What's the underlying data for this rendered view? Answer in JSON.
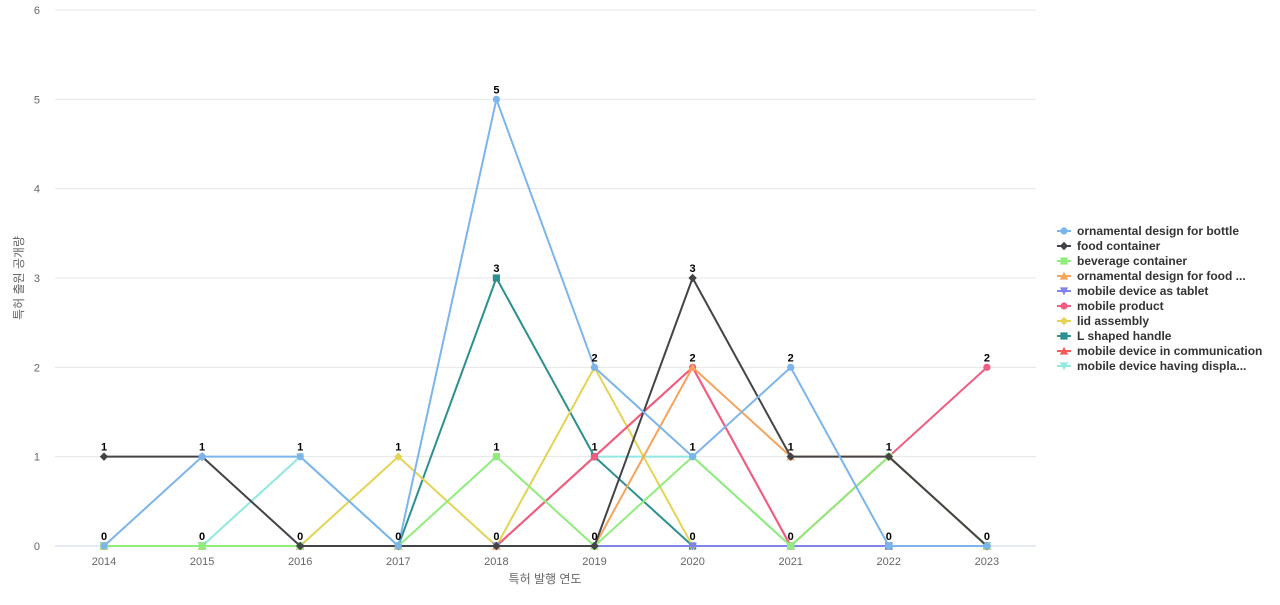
{
  "chart_data": {
    "type": "line",
    "title": "",
    "xlabel": "특허 발행 연도",
    "ylabel": "특허 출원 공개량",
    "categories": [
      "2014",
      "2015",
      "2016",
      "2017",
      "2018",
      "2019",
      "2020",
      "2021",
      "2022",
      "2023"
    ],
    "ylim": [
      0,
      6
    ],
    "yticks": [
      "0",
      "1",
      "2",
      "3",
      "4",
      "5",
      "6"
    ],
    "grid": true,
    "legend_position": "right",
    "series": [
      {
        "name": "ornamental design for bottle",
        "color": "#7cb5ec",
        "marker": "circle",
        "values": [
          0,
          1,
          1,
          0,
          5,
          2,
          1,
          2,
          0,
          0
        ]
      },
      {
        "name": "food container",
        "color": "#434348",
        "marker": "diamond",
        "values": [
          1,
          1,
          0,
          0,
          0,
          0,
          3,
          1,
          1,
          0
        ]
      },
      {
        "name": "beverage container",
        "color": "#90ed7d",
        "marker": "square",
        "values": [
          0,
          0,
          0,
          0,
          1,
          0,
          1,
          0,
          1,
          0
        ]
      },
      {
        "name": "ornamental design for food ...",
        "color": "#f7a35c",
        "marker": "triangle",
        "values": [
          0,
          0,
          0,
          0,
          0,
          0,
          2,
          1,
          1,
          0
        ]
      },
      {
        "name": "mobile device as tablet",
        "color": "#8085e9",
        "marker": "triangle-down",
        "values": [
          0,
          0,
          0,
          0,
          0,
          0,
          0,
          0,
          0,
          0
        ]
      },
      {
        "name": "mobile product",
        "color": "#f15c80",
        "marker": "circle",
        "values": [
          0,
          0,
          0,
          0,
          0,
          1,
          2,
          0,
          1,
          2
        ]
      },
      {
        "name": "lid assembly",
        "color": "#e4d354",
        "marker": "diamond",
        "values": [
          0,
          0,
          0,
          1,
          0,
          2,
          0,
          0,
          1,
          0
        ]
      },
      {
        "name": "L shaped handle",
        "color": "#2b908f",
        "marker": "square",
        "values": [
          0,
          0,
          0,
          0,
          3,
          1,
          0,
          0,
          0,
          0
        ]
      },
      {
        "name": "mobile device in communication",
        "color": "#f45b5b",
        "marker": "triangle",
        "values": [
          0,
          0,
          0,
          0,
          0,
          1,
          2,
          0,
          0,
          0
        ]
      },
      {
        "name": "mobile device having displa...",
        "color": "#91e8e1",
        "marker": "triangle-down",
        "values": [
          0,
          0,
          1,
          0,
          0,
          1,
          1,
          0,
          0,
          0
        ]
      }
    ],
    "data_labels": [
      {
        "x": "2014",
        "value": 1
      },
      {
        "x": "2014",
        "value": 0
      },
      {
        "x": "2015",
        "value": 1
      },
      {
        "x": "2015",
        "value": 0
      },
      {
        "x": "2016",
        "value": 1
      },
      {
        "x": "2016",
        "value": 0
      },
      {
        "x": "2017",
        "value": 1
      },
      {
        "x": "2017",
        "value": 0
      },
      {
        "x": "2018",
        "value": 5
      },
      {
        "x": "2018",
        "value": 3
      },
      {
        "x": "2018",
        "value": 1
      },
      {
        "x": "2018",
        "value": 0
      },
      {
        "x": "2019",
        "value": 2
      },
      {
        "x": "2019",
        "value": 1
      },
      {
        "x": "2019",
        "value": 0
      },
      {
        "x": "2020",
        "value": 3
      },
      {
        "x": "2020",
        "value": 2
      },
      {
        "x": "2020",
        "value": 1
      },
      {
        "x": "2020",
        "value": 0
      },
      {
        "x": "2021",
        "value": 2
      },
      {
        "x": "2021",
        "value": 1
      },
      {
        "x": "2021",
        "value": 0
      },
      {
        "x": "2022",
        "value": 1
      },
      {
        "x": "2022",
        "value": 0
      },
      {
        "x": "2023",
        "value": 2
      },
      {
        "x": "2023",
        "value": 0
      }
    ]
  }
}
